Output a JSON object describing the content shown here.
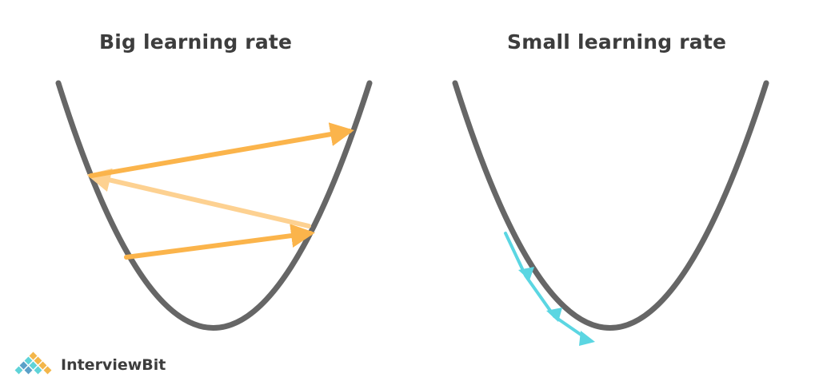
{
  "panels": {
    "left": {
      "title": "Big learning rate"
    },
    "right": {
      "title": "Small learning rate"
    }
  },
  "logo": {
    "text": "InterviewBit",
    "icon": "interviewbit-pyramid-icon"
  },
  "colors": {
    "curve": "#666666",
    "big_step": "#fbb44b",
    "big_step_return": "#fdd191",
    "small_step": "#5bd6e2",
    "title": "#3d3d3d",
    "logo_orange": "#f3b64a",
    "logo_teal": "#5fd3d8",
    "logo_blue": "#5aa0c8"
  }
}
